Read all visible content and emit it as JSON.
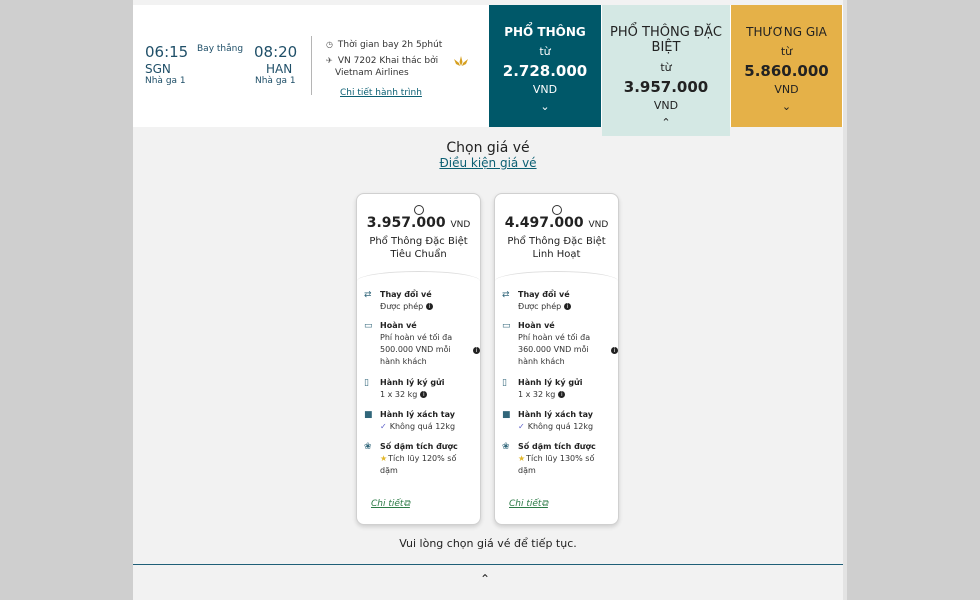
{
  "flight": {
    "depart_time": "06:15",
    "depart_code": "SGN",
    "depart_terminal": "Nhà ga 1",
    "direct_label": "Bay thẳng",
    "arrive_time": "08:20",
    "arrive_code": "HAN",
    "arrive_terminal": "Nhà ga 1",
    "duration": "Thời gian bay 2h 5phút",
    "flight_line1": "VN 7202 Khai thác bởi",
    "flight_line2": "Vietnam Airlines",
    "itinerary_link": "Chi tiết hành trình"
  },
  "fares": [
    {
      "name": "PHỔ THÔNG",
      "from": "từ",
      "price": "2.728.000",
      "currency": "VND",
      "chevron": "⌄",
      "color": "#005869"
    },
    {
      "name": "PHỔ THÔNG ĐẶC BIỆT",
      "from": "từ",
      "price": "3.957.000",
      "currency": "VND",
      "chevron": "⌃",
      "color": "#d4e8e4"
    },
    {
      "name": "THƯƠNG GIA",
      "from": "từ",
      "price": "5.860.000",
      "currency": "VND",
      "chevron": "⌄",
      "color": "#e5b148"
    }
  ],
  "selection": {
    "title": "Chọn giá vé",
    "conditions_link": "Điều kiện giá vé",
    "continue_text": "Vui lòng chọn giá vé để tiếp tục."
  },
  "cards": [
    {
      "price": "3.957.000",
      "currency": "VND",
      "name": "Phổ Thông Đặc Biệt Tiêu Chuẩn",
      "change_title": "Thay đổi vé",
      "change_value": "Được phép",
      "refund_title": "Hoàn vé",
      "refund_l1": "Phí hoàn vé tối đa",
      "refund_l2": "500.000 VND mỗi",
      "refund_l3": "hành khách",
      "checked_title": "Hành lý ký gửi",
      "checked_value": "1 x 32 kg",
      "carry_title": "Hành lý xách tay",
      "carry_value": "Không quá 12kg",
      "miles_title": "Số dặm tích được",
      "miles_l1": "Tích lũy 120% số",
      "miles_l2": "dặm",
      "details": "Chi tiết"
    },
    {
      "price": "4.497.000",
      "currency": "VND",
      "name": "Phổ Thông Đặc Biệt Linh Hoạt",
      "change_title": "Thay đổi vé",
      "change_value": "Được phép",
      "refund_title": "Hoàn vé",
      "refund_l1": "Phí hoàn vé tối đa",
      "refund_l2": "360.000 VND mỗi",
      "refund_l3": "hành khách",
      "checked_title": "Hành lý ký gửi",
      "checked_value": "1 x 32 kg",
      "carry_title": "Hành lý xách tay",
      "carry_value": "Không quá 12kg",
      "miles_title": "Số dặm tích được",
      "miles_l1": "Tích lũy 130% số",
      "miles_l2": "dặm",
      "details": "Chi tiết"
    }
  ],
  "icons": {
    "clock": "clock-icon",
    "plane": "plane-icon",
    "lotus": "lotus-logo-icon",
    "change": "ticket-change-icon",
    "refund": "refund-icon",
    "checked_bag": "luggage-icon",
    "carry_bag": "briefcase-icon",
    "miles": "lotus-miles-icon"
  }
}
